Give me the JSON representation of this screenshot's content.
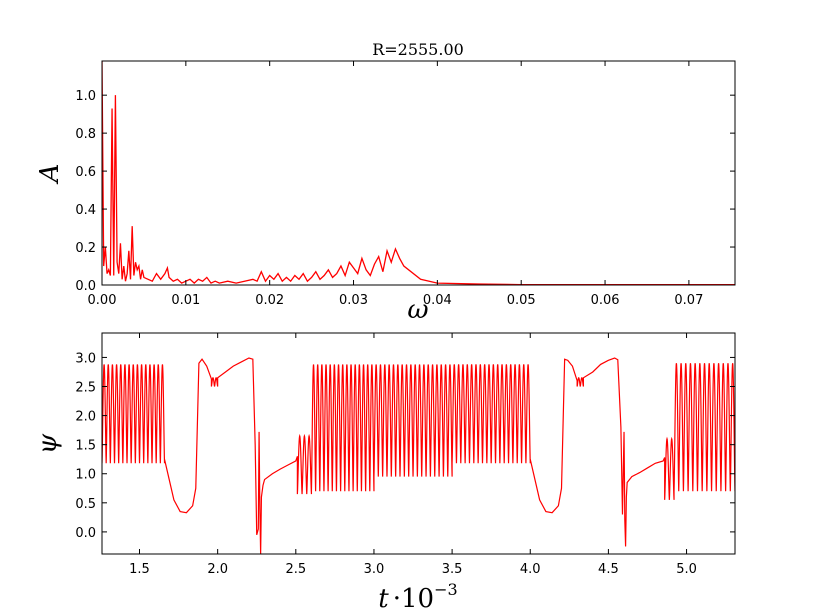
{
  "chart_data": [
    {
      "type": "line",
      "title": "R=2555.00",
      "xlabel": "ω",
      "ylabel": "A",
      "xlim": [
        0,
        0.0755
      ],
      "ylim": [
        0,
        1.18
      ],
      "grid": false,
      "x_ticks": [
        "0.00",
        "0.01",
        "0.02",
        "0.03",
        "0.04",
        "0.05",
        "0.06",
        "0.07"
      ],
      "x_tick_values": [
        0,
        0.01,
        0.02,
        0.03,
        0.04,
        0.05,
        0.06,
        0.07
      ],
      "y_ticks": [
        "0.0",
        "0.2",
        "0.4",
        "0.6",
        "0.8",
        "1.0"
      ],
      "y_tick_values": [
        0,
        0.2,
        0.4,
        0.6,
        0.8,
        1.0
      ],
      "color": "#ff0000",
      "series": [
        {
          "x": [
            0,
            0.0002,
            0.0004,
            0.0006,
            0.0008,
            0.001,
            0.0012,
            0.0014,
            0.0016,
            0.0018,
            0.002,
            0.0022,
            0.0024,
            0.0026,
            0.0028,
            0.003,
            0.0032,
            0.0034,
            0.0036,
            0.0038,
            0.004,
            0.0042,
            0.0044,
            0.0046,
            0.0048,
            0.005,
            0.0055,
            0.006,
            0.0065,
            0.007,
            0.0075,
            0.0078,
            0.008,
            0.0085,
            0.009,
            0.0095,
            0.01,
            0.0105,
            0.011,
            0.0115,
            0.012,
            0.0125,
            0.013,
            0.0135,
            0.014,
            0.015,
            0.016,
            0.017,
            0.018,
            0.0185,
            0.019,
            0.0195,
            0.02,
            0.0205,
            0.021,
            0.0215,
            0.022,
            0.0225,
            0.023,
            0.0235,
            0.024,
            0.0245,
            0.025,
            0.0255,
            0.026,
            0.0265,
            0.027,
            0.0275,
            0.028,
            0.0285,
            0.029,
            0.0295,
            0.03,
            0.0305,
            0.031,
            0.0315,
            0.032,
            0.0325,
            0.033,
            0.0335,
            0.034,
            0.0345,
            0.035,
            0.0355,
            0.036,
            0.038,
            0.04,
            0.045,
            0.05,
            0.06,
            0.07,
            0.0755
          ],
          "y": [
            1.18,
            0.1,
            0.2,
            0.06,
            0.08,
            0.05,
            0.93,
            0.05,
            1.0,
            0.12,
            0.06,
            0.22,
            0.03,
            0.1,
            0.02,
            0.06,
            0.18,
            0.03,
            0.31,
            0.05,
            0.12,
            0.08,
            0.1,
            0.03,
            0.08,
            0.04,
            0.03,
            0.02,
            0.06,
            0.03,
            0.06,
            0.09,
            0.04,
            0.02,
            0.03,
            0.01,
            0.02,
            0.03,
            0.01,
            0.03,
            0.02,
            0.04,
            0.01,
            0.02,
            0.01,
            0.02,
            0.01,
            0.02,
            0.03,
            0.02,
            0.07,
            0.02,
            0.05,
            0.03,
            0.06,
            0.02,
            0.04,
            0.02,
            0.05,
            0.03,
            0.06,
            0.02,
            0.04,
            0.07,
            0.03,
            0.05,
            0.08,
            0.04,
            0.06,
            0.1,
            0.05,
            0.12,
            0.09,
            0.06,
            0.14,
            0.08,
            0.05,
            0.11,
            0.15,
            0.07,
            0.18,
            0.12,
            0.19,
            0.14,
            0.1,
            0.03,
            0.01,
            0.005,
            0.002,
            0.002,
            0.002,
            0.002
          ]
        }
      ]
    },
    {
      "type": "line",
      "title": "",
      "xlabel": "t·10^-3",
      "ylabel": "ψ",
      "xlim": [
        1.26,
        5.31
      ],
      "ylim": [
        -0.38,
        3.42
      ],
      "grid": false,
      "x_ticks": [
        "1.5",
        "2.0",
        "2.5",
        "3.0",
        "3.5",
        "4.0",
        "4.5",
        "5.0"
      ],
      "x_tick_values": [
        1.5,
        2.0,
        2.5,
        3.0,
        3.5,
        4.0,
        4.5,
        5.0
      ],
      "y_ticks": [
        "0.0",
        "0.5",
        "1.0",
        "1.5",
        "2.0",
        "2.5",
        "3.0"
      ],
      "y_tick_values": [
        0,
        0.5,
        1.0,
        1.5,
        2.0,
        2.5,
        3.0
      ],
      "color": "#ff0000",
      "segments": [
        {
          "kind": "osc",
          "t0": 1.26,
          "t1": 1.66,
          "cycles": 15,
          "low": 1.18,
          "high": 2.88
        },
        {
          "kind": "path",
          "t": [
            1.66,
            1.69,
            1.72,
            1.76,
            1.8,
            1.84,
            1.86,
            1.88,
            1.9,
            1.93,
            1.96
          ],
          "y": [
            1.25,
            0.9,
            0.55,
            0.35,
            0.33,
            0.45,
            0.75,
            2.9,
            2.97,
            2.85,
            2.63
          ]
        },
        {
          "kind": "osc",
          "t0": 1.96,
          "t1": 2.0,
          "cycles": 2,
          "low": 2.5,
          "high": 2.65
        },
        {
          "kind": "path",
          "t": [
            2.0,
            2.05,
            2.1,
            2.15,
            2.2,
            2.225,
            2.24,
            2.25,
            2.26,
            2.265,
            2.27,
            2.275,
            2.28,
            2.29,
            2.3,
            2.35,
            2.4,
            2.45,
            2.5,
            2.51
          ],
          "y": [
            2.65,
            2.75,
            2.85,
            2.92,
            2.99,
            2.97,
            1.5,
            -0.05,
            0.05,
            1.72,
            0.4,
            -0.38,
            0.6,
            0.8,
            0.9,
            1.0,
            1.08,
            1.15,
            1.22,
            1.3
          ]
        },
        {
          "kind": "osc",
          "t0": 2.51,
          "t1": 2.6,
          "cycles": 3,
          "low": 0.65,
          "high": 1.65
        },
        {
          "kind": "osc",
          "t0": 2.6,
          "t1": 3.0,
          "cycles": 15,
          "low": 0.7,
          "high": 2.88
        },
        {
          "kind": "osc",
          "t0": 3.0,
          "t1": 3.5,
          "cycles": 18,
          "low": 0.95,
          "high": 2.88
        },
        {
          "kind": "osc",
          "t0": 3.5,
          "t1": 4.0,
          "cycles": 18,
          "low": 1.18,
          "high": 2.88
        },
        {
          "kind": "path",
          "t": [
            4.0,
            4.03,
            4.06,
            4.1,
            4.14,
            4.18,
            4.2,
            4.22,
            4.24,
            4.27,
            4.3
          ],
          "y": [
            1.25,
            0.9,
            0.55,
            0.35,
            0.33,
            0.45,
            0.75,
            2.97,
            2.95,
            2.85,
            2.6
          ]
        },
        {
          "kind": "osc",
          "t0": 4.3,
          "t1": 4.34,
          "cycles": 2,
          "low": 2.5,
          "high": 2.65
        },
        {
          "kind": "path",
          "t": [
            4.34,
            4.4,
            4.45,
            4.5,
            4.54,
            4.56,
            4.58,
            4.59,
            4.6,
            4.605,
            4.61,
            4.615,
            4.62,
            4.65,
            4.7,
            4.75,
            4.8,
            4.85,
            4.86
          ],
          "y": [
            2.65,
            2.75,
            2.88,
            2.95,
            2.99,
            2.96,
            1.8,
            0.3,
            1.72,
            0.2,
            -0.25,
            0.6,
            0.85,
            0.95,
            1.02,
            1.1,
            1.18,
            1.22,
            1.28
          ]
        },
        {
          "kind": "osc",
          "t0": 4.86,
          "t1": 4.92,
          "cycles": 2,
          "low": 0.55,
          "high": 1.6
        },
        {
          "kind": "osc",
          "t0": 4.92,
          "t1": 5.31,
          "cycles": 13,
          "low": 0.7,
          "high": 2.9
        }
      ]
    }
  ]
}
